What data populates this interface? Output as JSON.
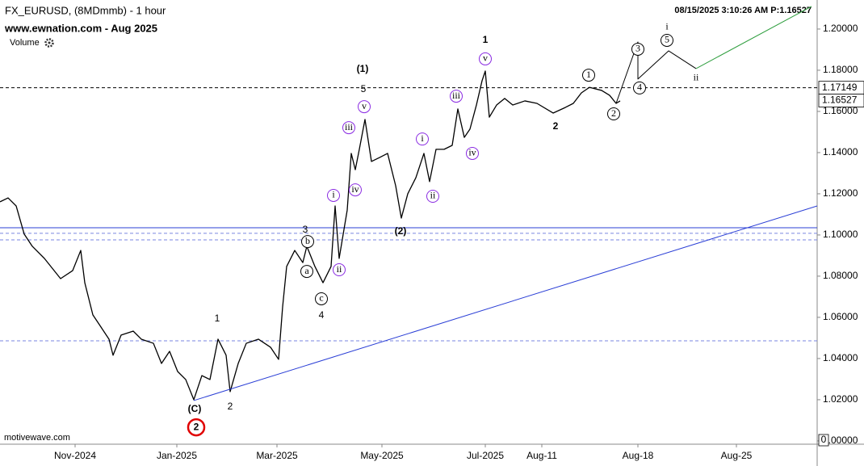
{
  "chart_data": {
    "type": "line",
    "title": "FX_EURUSD, (8MDmmb) - 1 hour",
    "subtitle": "www.ewnation.com  - Aug 2025",
    "volume_label": "Volume",
    "timestamp": "08/15/2025 3:10:26 AM  P:1.16527",
    "footer": "motivewave.com",
    "xlim": [
      0,
      101.2
    ],
    "xticks": [
      {
        "value": 9.3,
        "label": "Nov-2024"
      },
      {
        "value": 21.9,
        "label": "Jan-2025"
      },
      {
        "value": 34.3,
        "label": "Mar-2025"
      },
      {
        "value": 47.3,
        "label": "May-2025"
      },
      {
        "value": 60.1,
        "label": "Jul-2025"
      },
      {
        "value": 67.1,
        "label": "Aug-11"
      },
      {
        "value": 79.0,
        "label": "Aug-18"
      },
      {
        "value": 91.2,
        "label": "Aug-25"
      }
    ],
    "ylim": [
      0.9984,
      1.2141
    ],
    "yticks": [
      {
        "value": 1.0,
        "label": "1.00000"
      },
      {
        "value": 1.02,
        "label": "1.02000"
      },
      {
        "value": 1.04,
        "label": "1.04000"
      },
      {
        "value": 1.06,
        "label": "1.06000"
      },
      {
        "value": 1.08,
        "label": "1.08000"
      },
      {
        "value": 1.1,
        "label": "1.10000"
      },
      {
        "value": 1.12,
        "label": "1.12000"
      },
      {
        "value": 1.14,
        "label": "1.14000"
      },
      {
        "value": 1.16,
        "label": "1.16000"
      },
      {
        "value": 1.18,
        "label": "1.18000"
      },
      {
        "value": 1.2,
        "label": "1.20000"
      }
    ],
    "price_tags": [
      1.17149,
      1.16527
    ],
    "volume_ticks": [
      0
    ],
    "series": [
      {
        "color": "#000000",
        "width": 1.3,
        "x": [
          0,
          1,
          2,
          3,
          4,
          5.5,
          7.5,
          9,
          10,
          10.5,
          11.5,
          12.5,
          13.5,
          14,
          15,
          16.5,
          17.5,
          19,
          20,
          21,
          22,
          23,
          24,
          25,
          26,
          27,
          28,
          28.5,
          29.5,
          30.5,
          32,
          33.5,
          34.5,
          35,
          35.5,
          36.5,
          37.5,
          38,
          39,
          40,
          41,
          41.5,
          42,
          43,
          43.5,
          44,
          44.5,
          45.2,
          46,
          47,
          48,
          49,
          49.7,
          50.5,
          51.5,
          52.5,
          53.2,
          54,
          55,
          56,
          56.7,
          57.5,
          58.2,
          59,
          59.7,
          60.1,
          60.6,
          61.5,
          62.5,
          63.5,
          65,
          66.5,
          68.5,
          70,
          71,
          72,
          73,
          74.5,
          75.5,
          76.3,
          76.8
        ],
        "values": [
          1.1161,
          1.118,
          1.1141,
          1.1004,
          1.0945,
          1.0886,
          1.0788,
          1.0827,
          1.0925,
          1.0768,
          1.0612,
          1.0553,
          1.0494,
          1.0416,
          1.0514,
          1.0533,
          1.0494,
          1.0474,
          1.0376,
          1.0435,
          1.0337,
          1.0298,
          1.02,
          1.0317,
          1.0298,
          1.0494,
          1.0416,
          1.0239,
          1.0376,
          1.0474,
          1.0494,
          1.0455,
          1.0396,
          1.0651,
          1.0847,
          1.0925,
          1.0866,
          1.0945,
          1.0847,
          1.0768,
          1.0847,
          1.1141,
          1.0886,
          1.1121,
          1.1396,
          1.1317,
          1.1416,
          1.1561,
          1.1357,
          1.1376,
          1.1396,
          1.1239,
          1.1082,
          1.12,
          1.1278,
          1.1396,
          1.1259,
          1.1416,
          1.1416,
          1.1435,
          1.1612,
          1.1474,
          1.1514,
          1.1631,
          1.1749,
          1.1796,
          1.1572,
          1.1631,
          1.1663,
          1.1631,
          1.1651,
          1.1639,
          1.1592,
          1.1619,
          1.1639,
          1.169,
          1.1717,
          1.1702,
          1.1678,
          1.1639,
          1.1651
        ]
      },
      {
        "color": "#000000",
        "width": 1,
        "x": [
          76.3,
          79,
          79,
          82.8,
          86.2
        ],
        "values": [
          1.1639,
          1.1937,
          1.1757,
          1.1894,
          1.1808
        ]
      },
      {
        "color": "#2e9e3e",
        "width": 1,
        "x": [
          86.2,
          100.5
        ],
        "values": [
          1.1808,
          1.211
        ]
      },
      {
        "color": "#2b3fd6",
        "width": 1,
        "x": [
          24,
          101.2
        ],
        "values": [
          1.0196,
          1.1141
        ]
      }
    ],
    "hlines": [
      {
        "value": 1.17149,
        "color": "#000000",
        "dash": true
      },
      {
        "value": 1.1035,
        "color": "#2b3fd6",
        "dash": false
      },
      {
        "value": 1.1008,
        "color": "#7a86e0",
        "dash": true
      },
      {
        "value": 1.0976,
        "color": "#7a86e0",
        "dash": true
      },
      {
        "value": 1.0486,
        "color": "#7a86e0",
        "dash": true
      }
    ],
    "annotations": [
      {
        "text": "1",
        "x": 60.1,
        "y": 1.1945,
        "color": "#8a2be2",
        "style": "bold"
      },
      {
        "text": "(1)",
        "x": 44.9,
        "y": 1.1804,
        "color": "#1a2fd0",
        "style": "bold"
      },
      {
        "text": "5",
        "x": 45.0,
        "y": 1.1706,
        "color": "#9b45d8",
        "style": "plain"
      },
      {
        "text": "v",
        "x": 45.1,
        "y": 1.1623,
        "color": "#8a2be2",
        "style": "circle"
      },
      {
        "text": "iii",
        "x": 43.2,
        "y": 1.1521,
        "color": "#8a2be2",
        "style": "circle"
      },
      {
        "text": "iv",
        "x": 44.0,
        "y": 1.1219,
        "color": "#8a2be2",
        "style": "circle"
      },
      {
        "text": "i",
        "x": 41.3,
        "y": 1.1192,
        "color": "#8a2be2",
        "style": "circle"
      },
      {
        "text": "3",
        "x": 37.8,
        "y": 1.1023,
        "color": "#9b45d8",
        "style": "plain"
      },
      {
        "text": "b",
        "x": 38.1,
        "y": 1.0968,
        "color": "#000000",
        "style": "circle"
      },
      {
        "text": "a",
        "x": 38.0,
        "y": 1.0823,
        "color": "#000000",
        "style": "circle"
      },
      {
        "text": "ii",
        "x": 42.0,
        "y": 1.0831,
        "color": "#8a2be2",
        "style": "circle"
      },
      {
        "text": "c",
        "x": 39.8,
        "y": 1.069,
        "color": "#000000",
        "style": "circle"
      },
      {
        "text": "4",
        "x": 39.8,
        "y": 1.0608,
        "color": "#9b45d8",
        "style": "plain"
      },
      {
        "text": "(2)",
        "x": 49.6,
        "y": 1.1016,
        "color": "#1a2fd0",
        "style": "bold"
      },
      {
        "text": "i",
        "x": 52.3,
        "y": 1.1466,
        "color": "#8a2be2",
        "style": "circle"
      },
      {
        "text": "ii",
        "x": 53.6,
        "y": 1.1188,
        "color": "#8a2be2",
        "style": "circle"
      },
      {
        "text": "iii",
        "x": 56.5,
        "y": 1.1674,
        "color": "#8a2be2",
        "style": "circle"
      },
      {
        "text": "iv",
        "x": 58.5,
        "y": 1.1396,
        "color": "#8a2be2",
        "style": "circle"
      },
      {
        "text": "v",
        "x": 60.1,
        "y": 1.1855,
        "color": "#8a2be2",
        "style": "circle"
      },
      {
        "text": "2",
        "x": 68.8,
        "y": 1.1525,
        "color": "#8a2be2",
        "style": "bold"
      },
      {
        "text": "1",
        "x": 72.9,
        "y": 1.1776,
        "color": "#000000",
        "style": "circle"
      },
      {
        "text": "2",
        "x": 76.0,
        "y": 1.1588,
        "color": "#000000",
        "style": "circle"
      },
      {
        "text": "3",
        "x": 79.0,
        "y": 1.1902,
        "color": "#000000",
        "style": "circle"
      },
      {
        "text": "4",
        "x": 79.2,
        "y": 1.1714,
        "color": "#000000",
        "style": "circle"
      },
      {
        "text": "5",
        "x": 82.6,
        "y": 1.1945,
        "color": "#000000",
        "style": "circle"
      },
      {
        "text": "i",
        "x": 82.6,
        "y": 1.2008,
        "color": "#000000",
        "style": "serif"
      },
      {
        "text": "ii",
        "x": 86.2,
        "y": 1.1761,
        "color": "#000000",
        "style": "serif"
      },
      {
        "text": "1",
        "x": 26.9,
        "y": 1.0592,
        "color": "#9b45d8",
        "style": "plain"
      },
      {
        "text": "2",
        "x": 28.5,
        "y": 1.0165,
        "color": "#9b45d8",
        "style": "plain"
      },
      {
        "text": "(C)",
        "x": 24.1,
        "y": 1.0153,
        "color": "#1a2fd0",
        "style": "small"
      },
      {
        "text": "2",
        "x": 24.3,
        "y": 1.0066,
        "color": "#e00000",
        "style": "big-circle"
      }
    ]
  }
}
